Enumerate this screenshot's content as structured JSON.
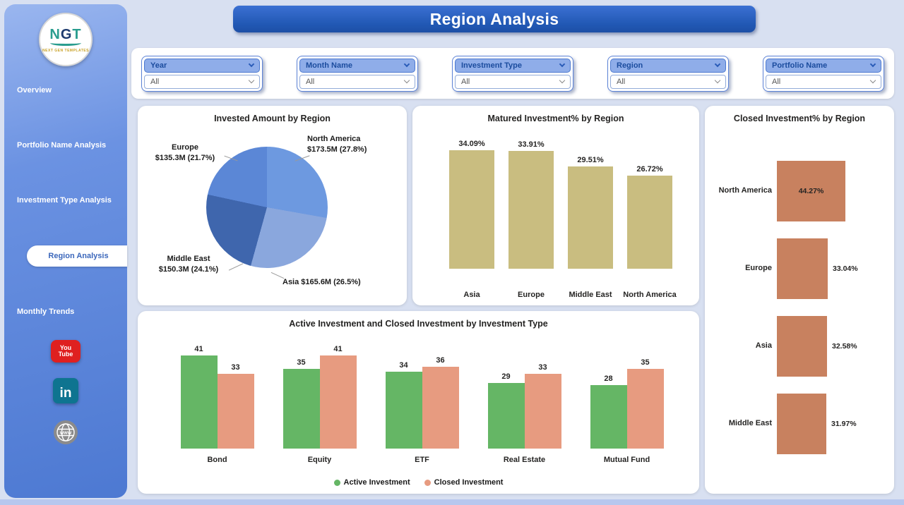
{
  "app": {
    "title": "Region Analysis"
  },
  "sidebar": {
    "logo": {
      "text_part1": "N",
      "text_part2": "G",
      "text_part3": "T",
      "subtext": "NEXT GEN TEMPLATES"
    },
    "items": [
      {
        "label": "Overview",
        "active": false
      },
      {
        "label": "Portfolio Name Analysis",
        "active": false
      },
      {
        "label": "Investment Type Analysis",
        "active": false
      },
      {
        "label": "Region Analysis",
        "active": true
      },
      {
        "label": "Monthly Trends",
        "active": false
      }
    ],
    "social": [
      {
        "name": "youtube",
        "lines": [
          "You",
          "Tube"
        ]
      },
      {
        "name": "linkedin",
        "label": "in"
      },
      {
        "name": "website",
        "label": "www"
      }
    ]
  },
  "filters": [
    {
      "label": "Year",
      "value": "All"
    },
    {
      "label": "Month Name",
      "value": "All"
    },
    {
      "label": "Investment Type",
      "value": "All"
    },
    {
      "label": "Region",
      "value": "All"
    },
    {
      "label": "Portfolio Name",
      "value": "All"
    }
  ],
  "chart_data": [
    {
      "type": "pie",
      "title": "Invested Amount by Region",
      "slices": [
        {
          "name": "North America",
          "amount_m": 173.5,
          "pct": 27.8,
          "color": "#6d99e0",
          "lines": [
            "North America",
            "$173.5M (27.8%)"
          ]
        },
        {
          "name": "Asia",
          "amount_m": 165.6,
          "pct": 26.5,
          "color": "#8aa7dd",
          "lines": [
            "Asia $165.6M (26.5%)"
          ]
        },
        {
          "name": "Middle East",
          "amount_m": 150.3,
          "pct": 24.1,
          "color": "#3f66ad",
          "lines": [
            "Middle East",
            "$150.3M (24.1%)"
          ]
        },
        {
          "name": "Europe",
          "amount_m": 135.3,
          "pct": 21.7,
          "color": "#5b87d6",
          "lines": [
            "Europe",
            "$135.3M (21.7%)"
          ]
        }
      ]
    },
    {
      "type": "bar",
      "title": "Matured Investment% by Region",
      "categories": [
        "Asia",
        "Europe",
        "Middle East",
        "North America"
      ],
      "values": [
        34.09,
        33.91,
        29.51,
        26.72
      ],
      "labels": [
        "34.09%",
        "33.91%",
        "29.51%",
        "26.72%"
      ],
      "color": "#c9bd80",
      "ylim": [
        0,
        35
      ]
    },
    {
      "type": "bar-horizontal",
      "title": "Closed Investment% by Region",
      "categories": [
        "North America",
        "Europe",
        "Asia",
        "Middle East"
      ],
      "values": [
        44.27,
        33.04,
        32.58,
        31.97
      ],
      "labels": [
        "44.27%",
        "33.04%",
        "32.58%",
        "31.97%"
      ],
      "color": "#c8815f",
      "xlim": [
        0,
        45
      ]
    },
    {
      "type": "bar-grouped",
      "title": "Active Investment and Closed Investment by Investment Type",
      "categories": [
        "Bond",
        "Equity",
        "ETF",
        "Real Estate",
        "Mutual Fund"
      ],
      "series": [
        {
          "name": "Active Investment",
          "color": "#65b665",
          "values": [
            41,
            35,
            34,
            29,
            28
          ]
        },
        {
          "name": "Closed Investment",
          "color": "#e79b80",
          "values": [
            33,
            41,
            36,
            33,
            35
          ]
        }
      ],
      "ylim": [
        0,
        45
      ],
      "legend_position": "bottom"
    }
  ]
}
